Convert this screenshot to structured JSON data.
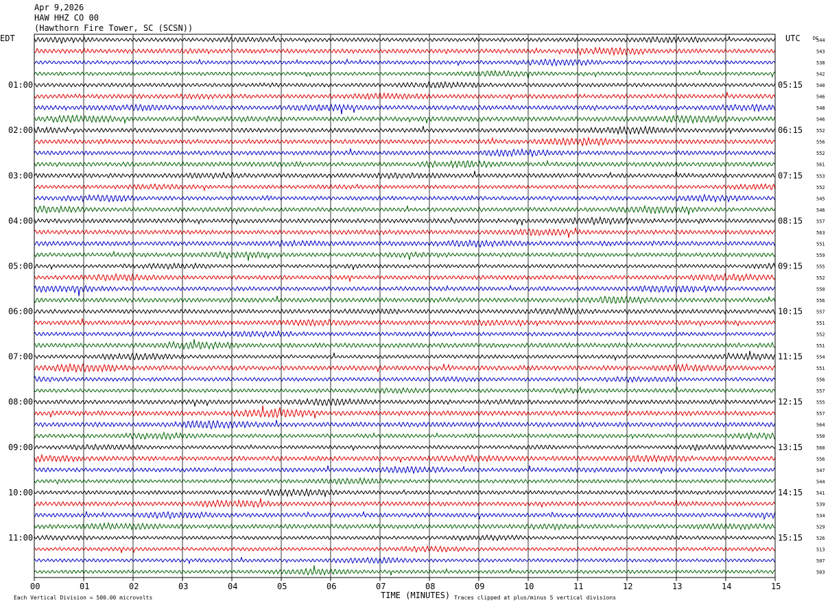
{
  "header": {
    "date": "Apr 9,2026",
    "channel": "HAW HHZ CO 00",
    "station": "(Hawthorn Fire Tower, SC (SCSN))"
  },
  "labels": {
    "left_tz": "EDT",
    "right_tz": "UTC",
    "dc": "DC"
  },
  "footer": {
    "scale_note": "Each Vertical Division =  500.00 microvolts",
    "axis_title": "TIME (MINUTES)",
    "clip_note": "Traces clipped at plus/minus 5 vertical divisions"
  },
  "colors": {
    "trace_cycle": [
      "#000000",
      "#e00000",
      "#0000c8",
      "#006400"
    ],
    "grid": "#000000"
  },
  "chart_data": {
    "type": "line",
    "subtype": "helicorder",
    "xlabel": "TIME (MINUTES)",
    "xlim": [
      0,
      15
    ],
    "x_ticks": [
      "00",
      "01",
      "02",
      "03",
      "04",
      "05",
      "06",
      "07",
      "08",
      "09",
      "10",
      "11",
      "12",
      "13",
      "14",
      "15"
    ],
    "row_minutes": 15,
    "row_count": 48,
    "left_hour_labels": [
      {
        "row": 4,
        "label": "01:00"
      },
      {
        "row": 8,
        "label": "02:00"
      },
      {
        "row": 12,
        "label": "03:00"
      },
      {
        "row": 16,
        "label": "04:00"
      },
      {
        "row": 20,
        "label": "05:00"
      },
      {
        "row": 24,
        "label": "06:00"
      },
      {
        "row": 28,
        "label": "07:00"
      },
      {
        "row": 32,
        "label": "08:00"
      },
      {
        "row": 36,
        "label": "09:00"
      },
      {
        "row": 40,
        "label": "10:00"
      },
      {
        "row": 44,
        "label": "11:00"
      }
    ],
    "right_hour_labels": [
      {
        "row": 4,
        "label": "05:15"
      },
      {
        "row": 8,
        "label": "06:15"
      },
      {
        "row": 12,
        "label": "07:15"
      },
      {
        "row": 16,
        "label": "08:15"
      },
      {
        "row": 20,
        "label": "09:15"
      },
      {
        "row": 24,
        "label": "10:15"
      },
      {
        "row": 28,
        "label": "11:15"
      },
      {
        "row": 32,
        "label": "12:15"
      },
      {
        "row": 36,
        "label": "13:15"
      },
      {
        "row": 40,
        "label": "14:15"
      },
      {
        "row": 44,
        "label": "15:15"
      }
    ],
    "dc_offsets": [
      544,
      543,
      538,
      542,
      540,
      546,
      548,
      546,
      552,
      556,
      552,
      561,
      553,
      552,
      545,
      546,
      557,
      563,
      551,
      559,
      555,
      552,
      550,
      556,
      557,
      551,
      552,
      551,
      554,
      551,
      556,
      557,
      555,
      557,
      564,
      550,
      560,
      556,
      547,
      544,
      541,
      539,
      534,
      529,
      526,
      513,
      507,
      503
    ],
    "scale_microvolts_per_division": 500.0,
    "clip_divisions": 5
  }
}
